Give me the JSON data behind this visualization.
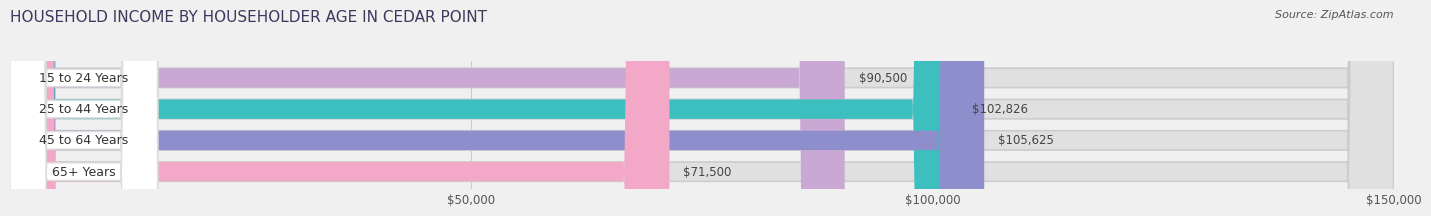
{
  "title": "HOUSEHOLD INCOME BY HOUSEHOLDER AGE IN CEDAR POINT",
  "source": "Source: ZipAtlas.com",
  "categories": [
    "15 to 24 Years",
    "25 to 44 Years",
    "45 to 64 Years",
    "65+ Years"
  ],
  "values": [
    90500,
    102826,
    105625,
    71500
  ],
  "bar_colors": [
    "#c9a8d4",
    "#3dbfbf",
    "#8e8ecc",
    "#f4a8c8"
  ],
  "xlim": [
    0,
    150000
  ],
  "xticks": [
    50000,
    100000,
    150000
  ],
  "xtick_labels": [
    "$50,000",
    "$100,000",
    "$150,000"
  ],
  "bar_height": 0.62,
  "background_color": "#f0f0f0",
  "bar_bg_color": "#e0e0e0",
  "title_fontsize": 11,
  "label_fontsize": 9,
  "value_fontsize": 8.5,
  "tick_fontsize": 8.5,
  "source_fontsize": 8
}
